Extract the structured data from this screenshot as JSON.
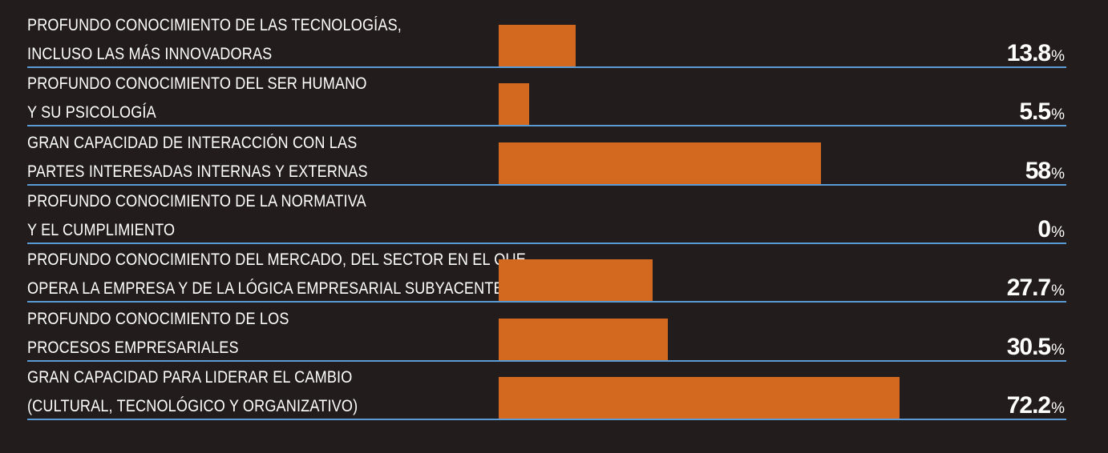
{
  "chart_data": {
    "type": "bar",
    "orientation": "horizontal",
    "categories": [
      [
        "PROFUNDO CONOCIMIENTO DE LAS TECNOLOGÍAS,",
        "INCLUSO LAS MÁS INNOVADORAS"
      ],
      [
        "PROFUNDO CONOCIMIENTO DEL SER HUMANO",
        "Y SU PSICOLOGÍA"
      ],
      [
        "GRAN CAPACIDAD DE INTERACCIÓN CON LAS",
        "PARTES INTERESADAS INTERNAS Y EXTERNAS"
      ],
      [
        "PROFUNDO CONOCIMIENTO DE LA NORMATIVA",
        "Y EL CUMPLIMIENTO"
      ],
      [
        "PROFUNDO CONOCIMIENTO DEL MERCADO, DEL SECTOR EN EL QUE",
        "OPERA LA EMPRESA Y DE LA LÓGICA EMPRESARIAL SUBYACENTE"
      ],
      [
        "PROFUNDO CONOCIMIENTO DE LOS",
        "PROCESOS EMPRESARIALES"
      ],
      [
        "GRAN CAPACIDAD PARA LIDERAR EL CAMBIO",
        "(CULTURAL, TECNOLÓGICO Y ORGANIZATIVO)"
      ]
    ],
    "values": [
      13.8,
      5.5,
      58,
      0,
      27.7,
      30.5,
      72.2
    ],
    "value_labels": [
      "13.8",
      "5.5",
      "58",
      "0",
      "27.7",
      "30.5",
      "72.2"
    ],
    "unit": "%",
    "xlim": [
      0,
      100
    ],
    "grid": false,
    "legend": "none",
    "colors": {
      "background": "#231c1c",
      "bar": "#d2691e",
      "rule": "#5b9bd5",
      "text": "#ffffff"
    }
  }
}
